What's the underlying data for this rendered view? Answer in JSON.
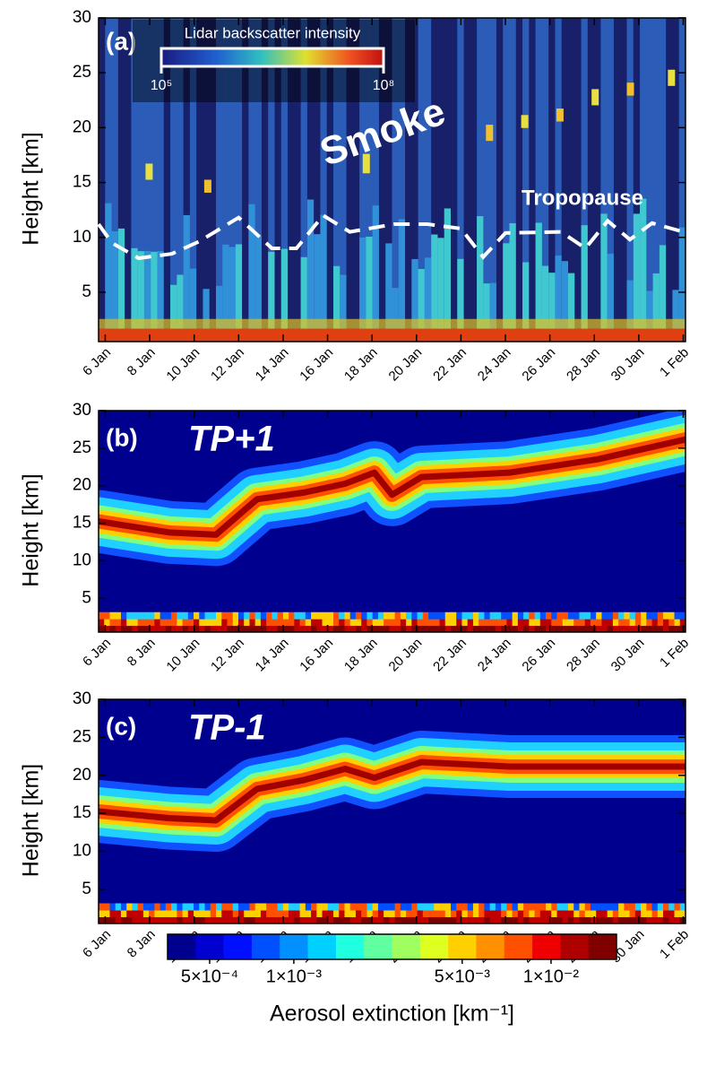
{
  "chart_data": [
    {
      "type": "heatmap",
      "panel": "(a)",
      "ylabel": "Height [km]",
      "annotations": [
        "Smoke"
      ],
      "xlim": [
        5.7,
        32.1
      ],
      "ylim": [
        0.5,
        30
      ],
      "yticks": [
        5,
        10,
        15,
        20,
        25,
        30
      ],
      "xticks": [
        {
          "value": 6,
          "label": "6 Jan"
        },
        {
          "value": 8,
          "label": "8 Jan"
        },
        {
          "value": 10,
          "label": "10 Jan"
        },
        {
          "value": 12,
          "label": "12 Jan"
        },
        {
          "value": 14,
          "label": "14 Jan"
        },
        {
          "value": 16,
          "label": "16 Jan"
        },
        {
          "value": 18,
          "label": "18 Jan"
        },
        {
          "value": 20,
          "label": "20 Jan"
        },
        {
          "value": 22,
          "label": "22 Jan"
        },
        {
          "value": 24,
          "label": "24 Jan"
        },
        {
          "value": 26,
          "label": "26 Jan"
        },
        {
          "value": 28,
          "label": "28 Jan"
        },
        {
          "value": 30,
          "label": "30 Jan"
        },
        {
          "value": 32,
          "label": "1 Feb"
        }
      ],
      "colorbar": {
        "title": "Lidar backscatter intensity",
        "log": true,
        "lim": [
          100000,
          100000000
        ],
        "ticks": [
          {
            "value": 100000,
            "label": "10⁵"
          },
          {
            "value": 100000000,
            "label": "10⁸"
          }
        ]
      },
      "series": [
        {
          "name": "Tropopause",
          "color": "#ffffff",
          "x": [
            5.7,
            6.3,
            7.5,
            9,
            10.2,
            12,
            13.5,
            14.6,
            15.8,
            17,
            19,
            20.5,
            22,
            23,
            24,
            26.5,
            27.6,
            28.6,
            29.6,
            30.6,
            32
          ],
          "values": [
            11.2,
            9.5,
            8.1,
            8.5,
            9.6,
            11.8,
            9,
            9,
            12,
            10.5,
            11.2,
            11.2,
            10.8,
            8.2,
            10.4,
            10.5,
            9,
            11.5,
            9.8,
            11.3,
            10.5
          ]
        }
      ]
    },
    {
      "type": "heatmap",
      "panel": "(b)",
      "annotations": [
        "TP+1"
      ],
      "ylabel": "Height [km]",
      "xlim": [
        5.7,
        32.1
      ],
      "ylim": [
        0.5,
        30
      ],
      "yticks": [
        5,
        10,
        15,
        20,
        25,
        30
      ],
      "xticks": [
        {
          "value": 6,
          "label": "6 Jan"
        },
        {
          "value": 8,
          "label": "8 Jan"
        },
        {
          "value": 10,
          "label": "10 Jan"
        },
        {
          "value": 12,
          "label": "12 Jan"
        },
        {
          "value": 14,
          "label": "14 Jan"
        },
        {
          "value": 16,
          "label": "16 Jan"
        },
        {
          "value": 18,
          "label": "18 Jan"
        },
        {
          "value": 20,
          "label": "20 Jan"
        },
        {
          "value": 22,
          "label": "22 Jan"
        },
        {
          "value": 24,
          "label": "24 Jan"
        },
        {
          "value": 26,
          "label": "26 Jan"
        },
        {
          "value": 28,
          "label": "28 Jan"
        },
        {
          "value": 30,
          "label": "30 Jan"
        },
        {
          "value": 32,
          "label": "1 Feb"
        }
      ]
    },
    {
      "type": "heatmap",
      "panel": "(c)",
      "annotations": [
        "TP-1"
      ],
      "ylabel": "Height [km]",
      "xlim": [
        5.7,
        32.1
      ],
      "ylim": [
        0.5,
        30
      ],
      "yticks": [
        5,
        10,
        15,
        20,
        25,
        30
      ],
      "xticks": [
        {
          "value": 6,
          "label": "6 Jan"
        },
        {
          "value": 8,
          "label": "8 Jan"
        },
        {
          "value": 10,
          "label": "10 Jan"
        },
        {
          "value": 12,
          "label": "12 Jan"
        },
        {
          "value": 14,
          "label": "14 Jan"
        },
        {
          "value": 16,
          "label": "16 Jan"
        },
        {
          "value": 18,
          "label": "18 Jan"
        },
        {
          "value": 20,
          "label": "20 Jan"
        },
        {
          "value": 22,
          "label": "22 Jan"
        },
        {
          "value": 24,
          "label": "24 Jan"
        },
        {
          "value": 26,
          "label": "26 Jan"
        },
        {
          "value": 28,
          "label": "28 Jan"
        },
        {
          "value": 30,
          "label": "30 Jan"
        },
        {
          "value": 32,
          "label": "1 Feb"
        }
      ]
    }
  ],
  "colorbar": {
    "title": "Aerosol extinction [km⁻¹]",
    "colors": [
      "#00008f",
      "#0000cf",
      "#0010ff",
      "#0050ff",
      "#0090ff",
      "#00d0ff",
      "#20ffdf",
      "#60ff9f",
      "#9fff60",
      "#dfff20",
      "#ffd000",
      "#ff9000",
      "#ff5000",
      "#ef0000",
      "#af0000",
      "#800000"
    ],
    "levels": [
      0.0001,
      0.0004,
      0.0006,
      0.0007,
      0.0009,
      0.0011,
      0.0015,
      0.002,
      0.0025,
      0.003,
      0.004,
      0.006,
      0.007,
      0.008,
      0.011,
      0.02
    ],
    "ticks": [
      {
        "value": 0.0005,
        "label": "5×10⁻⁴"
      },
      {
        "value": 0.001,
        "label": "1×10⁻³"
      },
      {
        "value": 0.005,
        "label": "5×10⁻³"
      },
      {
        "value": 0.01,
        "label": "1×10⁻²"
      }
    ]
  }
}
